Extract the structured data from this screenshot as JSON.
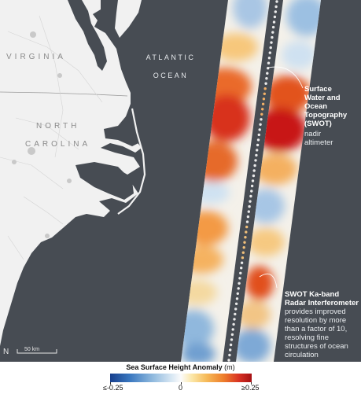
{
  "map": {
    "states": [
      "VIRGINIA",
      "NORTH",
      "CAROLINA"
    ],
    "ocean_line1": "ATLANTIC",
    "ocean_line2": "OCEAN",
    "annotations": {
      "nadir_title": "Surface\nWater and\nOcean\nTopography\n(SWOT)",
      "nadir_sub": "nadir\naltimeter",
      "kaband_title": "SWOT Ka-band\nRadar Interferometer",
      "kaband_sub": "provides improved\nresolution by more\nthan a factor of 10,\nresolving fine\nstructures of ocean\ncirculation"
    },
    "scale_bar_label": "50 km",
    "north_symbol": "N"
  },
  "legend": {
    "title_bold": "Sea Surface Height Anomaly",
    "title_unit": " (m)",
    "tick_min": "≤-0.25",
    "tick_mid": "0",
    "tick_max": "≥0.25"
  },
  "colors": {
    "ocean": "#474c53",
    "land": "#f1f1f1",
    "anomaly_high": "#c8141a",
    "anomaly_low": "#1f4ea0",
    "neutral": "#f8f8f8"
  }
}
